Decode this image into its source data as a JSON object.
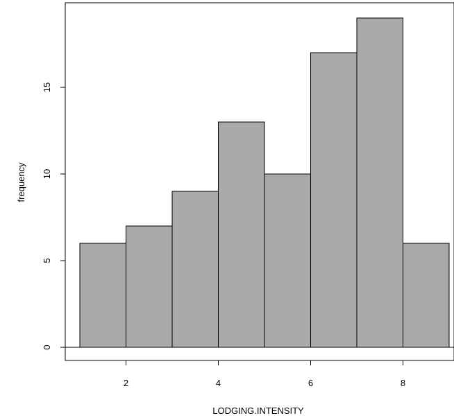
{
  "chart_data": {
    "type": "bar",
    "title": "",
    "xlabel": "LODGING.INTENSITY",
    "ylabel": "frequency",
    "bins": [
      {
        "x0": 1,
        "x1": 2,
        "count": 6
      },
      {
        "x0": 2,
        "x1": 3,
        "count": 7
      },
      {
        "x0": 3,
        "x1": 4,
        "count": 9
      },
      {
        "x0": 4,
        "x1": 5,
        "count": 13
      },
      {
        "x0": 5,
        "x1": 6,
        "count": 10
      },
      {
        "x0": 6,
        "x1": 7,
        "count": 17
      },
      {
        "x0": 7,
        "x1": 8,
        "count": 19
      },
      {
        "x0": 8,
        "x1": 9,
        "count": 6
      }
    ],
    "xticks": [
      "2",
      "4",
      "6",
      "8"
    ],
    "yticks": [
      "0",
      "5",
      "10",
      "15"
    ],
    "xlim": [
      0.7,
      9
    ],
    "ylim": [
      -1,
      19.5
    ],
    "bar_fill": "#a9a9a9",
    "bar_stroke": "#000000",
    "grid": false,
    "legend": "none"
  }
}
